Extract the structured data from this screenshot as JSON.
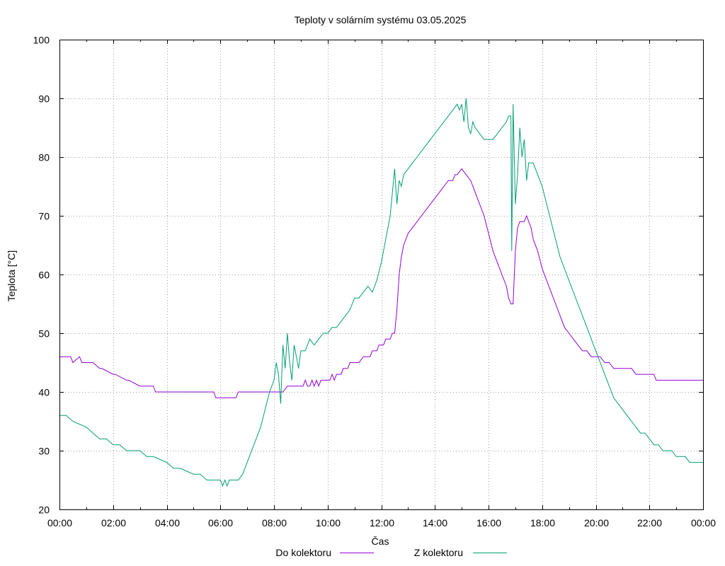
{
  "chart_data": {
    "type": "line",
    "title": "Teploty v solárním systému 03.05.2025",
    "xlabel": "Čas",
    "ylabel": "Teplota [°C]",
    "xlim": [
      0,
      24
    ],
    "ylim": [
      20,
      100
    ],
    "grid": true,
    "legend_position": "bottom-center",
    "y_ticks": [
      "20",
      "30",
      "40",
      "50",
      "60",
      "70",
      "80",
      "90",
      "100"
    ],
    "x_ticks": [
      "00:00",
      "02:00",
      "04:00",
      "06:00",
      "08:00",
      "10:00",
      "12:00",
      "14:00",
      "16:00",
      "18:00",
      "20:00",
      "22:00",
      "00:00"
    ],
    "series": [
      {
        "name": "Do kolektoru",
        "color": "#9400d3",
        "x": [
          "00:00",
          "00:25",
          "00:30",
          "00:45",
          "00:50",
          "01:15",
          "01:30",
          "01:35",
          "02:00",
          "02:05",
          "02:30",
          "02:35",
          "03:00",
          "03:05",
          "03:30",
          "03:35",
          "04:00",
          "05:00",
          "05:30",
          "05:45",
          "05:50",
          "06:00",
          "06:30",
          "06:35",
          "06:40",
          "06:45",
          "07:00",
          "07:30",
          "07:45",
          "07:55",
          "08:00",
          "08:05",
          "08:10",
          "08:15",
          "08:20",
          "08:30",
          "08:40",
          "08:50",
          "09:00",
          "09:05",
          "09:10",
          "09:15",
          "09:20",
          "09:25",
          "09:30",
          "09:35",
          "09:40",
          "09:45",
          "09:50",
          "10:00",
          "10:05",
          "10:10",
          "10:15",
          "10:20",
          "10:25",
          "10:30",
          "10:35",
          "10:40",
          "10:45",
          "10:50",
          "11:00",
          "11:10",
          "11:20",
          "11:30",
          "11:35",
          "11:40",
          "11:45",
          "11:50",
          "11:55",
          "12:00",
          "12:05",
          "12:10",
          "12:15",
          "12:20",
          "12:25",
          "12:30",
          "12:35",
          "12:40",
          "12:45",
          "12:50",
          "13:00",
          "13:10",
          "13:20",
          "13:30",
          "13:40",
          "13:50",
          "14:00",
          "14:10",
          "14:20",
          "14:30",
          "14:40",
          "14:45",
          "14:50",
          "15:00",
          "15:10",
          "15:20",
          "15:30",
          "15:40",
          "15:50",
          "16:00",
          "16:10",
          "16:20",
          "16:30",
          "16:40",
          "16:45",
          "16:50",
          "16:55",
          "17:00",
          "17:05",
          "17:10",
          "17:15",
          "17:20",
          "17:25",
          "17:30",
          "17:35",
          "17:40",
          "17:50",
          "18:00",
          "18:10",
          "18:20",
          "18:30",
          "18:40",
          "18:50",
          "19:00",
          "19:10",
          "19:20",
          "19:30",
          "19:40",
          "19:50",
          "20:00",
          "20:10",
          "20:20",
          "20:30",
          "20:40",
          "20:50",
          "21:00",
          "21:10",
          "21:20",
          "21:30",
          "21:40",
          "21:50",
          "22:00",
          "22:10",
          "22:15",
          "22:20",
          "22:30",
          "23:00",
          "23:30",
          "24:00"
        ],
        "y": [
          46,
          46,
          45,
          46,
          45,
          45,
          44,
          44,
          43,
          43,
          42,
          42,
          41,
          41,
          41,
          40,
          40,
          40,
          40,
          40,
          39,
          39,
          39,
          39,
          40,
          40,
          40,
          40,
          40,
          40,
          40,
          40,
          40,
          40,
          40,
          41,
          41,
          41,
          41,
          41,
          42,
          41,
          41,
          42,
          41,
          42,
          41,
          42,
          42,
          42,
          42,
          43,
          42,
          43,
          43,
          43,
          44,
          44,
          44,
          45,
          45,
          45,
          46,
          46,
          46,
          47,
          47,
          47,
          48,
          48,
          48,
          49,
          49,
          49,
          50,
          50,
          54,
          60,
          63,
          65,
          67,
          68,
          69,
          70,
          71,
          72,
          73,
          74,
          75,
          76,
          76,
          77,
          77,
          78,
          77,
          76,
          74,
          72,
          70,
          67,
          64,
          62,
          60,
          58,
          56,
          55,
          55,
          64,
          68,
          69,
          69,
          69,
          70,
          69,
          68,
          66,
          64,
          61,
          59,
          57,
          55,
          53,
          51,
          50,
          49,
          48,
          47,
          47,
          46,
          46,
          46,
          45,
          45,
          44,
          44,
          44,
          44,
          44,
          43,
          43,
          43,
          43,
          43,
          42,
          42,
          42,
          42,
          42,
          42
        ]
      },
      {
        "name": "Z kolektoru",
        "color": "#009e73",
        "x": [
          "00:00",
          "00:15",
          "00:30",
          "01:00",
          "01:15",
          "01:30",
          "01:45",
          "02:00",
          "02:15",
          "02:30",
          "03:00",
          "03:15",
          "03:30",
          "04:00",
          "04:15",
          "04:30",
          "05:00",
          "05:15",
          "05:30",
          "05:45",
          "06:00",
          "06:05",
          "06:10",
          "06:15",
          "06:20",
          "06:25",
          "06:30",
          "06:40",
          "06:50",
          "07:00",
          "07:10",
          "07:20",
          "07:30",
          "07:40",
          "07:50",
          "08:00",
          "08:05",
          "08:10",
          "08:15",
          "08:20",
          "08:25",
          "08:30",
          "08:35",
          "08:40",
          "08:45",
          "08:50",
          "08:55",
          "09:00",
          "09:10",
          "09:20",
          "09:30",
          "09:40",
          "09:50",
          "10:00",
          "10:10",
          "10:20",
          "10:30",
          "10:40",
          "10:50",
          "11:00",
          "11:10",
          "11:20",
          "11:30",
          "11:40",
          "11:50",
          "12:00",
          "12:10",
          "12:20",
          "12:30",
          "12:35",
          "12:40",
          "12:45",
          "12:50",
          "13:00",
          "13:10",
          "13:20",
          "13:30",
          "13:40",
          "13:50",
          "14:00",
          "14:10",
          "14:20",
          "14:30",
          "14:40",
          "14:50",
          "14:55",
          "15:00",
          "15:05",
          "15:10",
          "15:15",
          "15:20",
          "15:25",
          "15:30",
          "15:40",
          "15:50",
          "16:00",
          "16:10",
          "16:20",
          "16:30",
          "16:40",
          "16:45",
          "16:50",
          "16:52",
          "16:55",
          "17:00",
          "17:05",
          "17:10",
          "17:15",
          "17:20",
          "17:25",
          "17:30",
          "17:40",
          "17:50",
          "18:00",
          "18:10",
          "18:20",
          "18:30",
          "18:40",
          "18:50",
          "19:00",
          "19:10",
          "19:20",
          "19:30",
          "19:40",
          "19:50",
          "20:00",
          "20:10",
          "20:20",
          "20:30",
          "20:40",
          "20:50",
          "21:00",
          "21:10",
          "21:20",
          "21:30",
          "21:40",
          "21:50",
          "22:00",
          "22:10",
          "22:20",
          "22:30",
          "22:40",
          "22:50",
          "23:00",
          "23:10",
          "23:20",
          "23:30",
          "23:40",
          "23:50",
          "24:00"
        ],
        "y": [
          36,
          36,
          35,
          34,
          33,
          32,
          32,
          31,
          31,
          30,
          30,
          29,
          29,
          28,
          27,
          27,
          26,
          26,
          25,
          25,
          25,
          24,
          25,
          24,
          25,
          25,
          25,
          25,
          26,
          28,
          30,
          32,
          34,
          37,
          40,
          42,
          45,
          43,
          38,
          48,
          44,
          50,
          45,
          42,
          48,
          46,
          44,
          47,
          47,
          49,
          48,
          49,
          50,
          50,
          51,
          51,
          52,
          53,
          54,
          56,
          56,
          57,
          58,
          57,
          59,
          62,
          66,
          70,
          78,
          72,
          76,
          75,
          77,
          78,
          79,
          80,
          81,
          82,
          83,
          84,
          85,
          86,
          87,
          88,
          89,
          88,
          89,
          86,
          90,
          85,
          84,
          86,
          85,
          84,
          83,
          83,
          83,
          84,
          85,
          86,
          87,
          87,
          64,
          89,
          72,
          77,
          85,
          80,
          83,
          76,
          79,
          79,
          77,
          75,
          72,
          69,
          66,
          63,
          61,
          59,
          57,
          55,
          53,
          51,
          49,
          47,
          45,
          43,
          41,
          39,
          38,
          37,
          36,
          35,
          34,
          33,
          33,
          32,
          31,
          31,
          30,
          30,
          30,
          29,
          29,
          29,
          28,
          28,
          28,
          28
        ]
      }
    ]
  }
}
